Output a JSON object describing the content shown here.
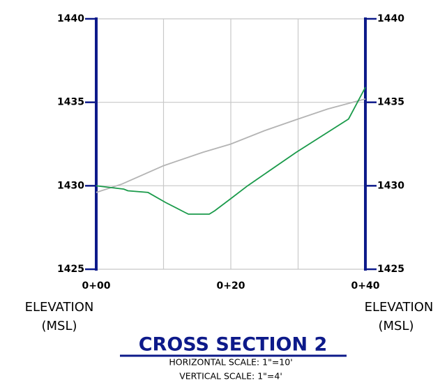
{
  "chart_data": {
    "type": "line",
    "title": "CROSS SECTION 2",
    "subtitle": [
      "HORIZONTAL SCALE: 1\"=10'",
      "VERTICAL SCALE: 1\"=4'"
    ],
    "y_label": [
      "ELEVATION",
      "(MSL)"
    ],
    "y2_label": [
      "ELEVATION",
      "(MSL)"
    ],
    "xlim": [
      0,
      40
    ],
    "xticks": [
      {
        "value": 0,
        "label": "0+00"
      },
      {
        "value": 20,
        "label": "0+20"
      },
      {
        "value": 40,
        "label": "0+40"
      }
    ],
    "xgrid": [
      0,
      10,
      20,
      30,
      40
    ],
    "ylim": [
      1425,
      1440
    ],
    "yticks": [
      1425,
      1430,
      1435,
      1440
    ],
    "y2lim": [
      1425,
      1440
    ],
    "y2ticks": [
      1425,
      1430,
      1435,
      1440
    ],
    "grid": true,
    "axis_color": "#0d1a8a",
    "series": [
      {
        "color": "#b4b4b4",
        "x": [
          0,
          3.8,
          10,
          15.8,
          20,
          25,
          30,
          34.4,
          40
        ],
        "values": [
          1429.6,
          1430.1,
          1431.2,
          1432.0,
          1432.5,
          1433.3,
          1434.0,
          1434.6,
          1435.2
        ]
      },
      {
        "color": "#1a9a4a",
        "x": [
          0,
          4.1,
          4.7,
          7.7,
          10.3,
          13.2,
          13.7,
          16.8,
          17.6,
          19.9,
          22.5,
          29.7,
          37.5,
          40
        ],
        "values": [
          1430.0,
          1429.8,
          1429.7,
          1429.6,
          1429.0,
          1428.4,
          1428.3,
          1428.3,
          1428.5,
          1429.2,
          1430.0,
          1432.0,
          1434.0,
          1435.9
        ]
      }
    ]
  }
}
